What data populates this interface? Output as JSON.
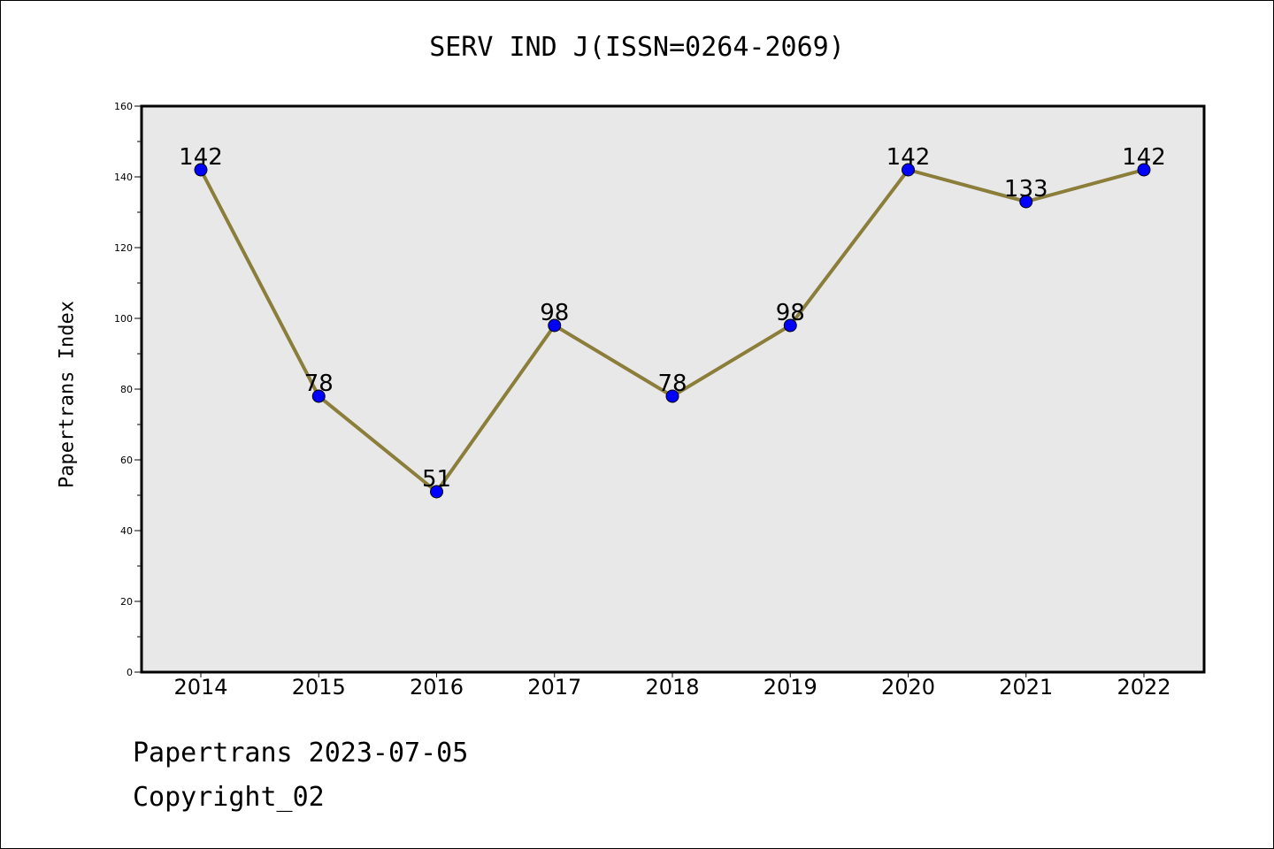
{
  "chart_data": {
    "type": "line",
    "title": "SERV IND J(ISSN=0264-2069)",
    "xlabel": "",
    "ylabel": "Papertrans Index",
    "categories": [
      "2014",
      "2015",
      "2016",
      "2017",
      "2018",
      "2019",
      "2020",
      "2021",
      "2022"
    ],
    "values": [
      142,
      78,
      51,
      98,
      78,
      98,
      142,
      133,
      142
    ],
    "ylim": [
      0,
      160
    ],
    "yticks": [
      0,
      20,
      40,
      60,
      80,
      100,
      120,
      140,
      160
    ],
    "grid": false,
    "line_color": "#8b7d3a",
    "marker_color": "#0000ff",
    "plot_background": "#e8e8e8"
  },
  "footer": {
    "line1": "Papertrans 2023-07-05",
    "line2": "Copyright_02"
  }
}
